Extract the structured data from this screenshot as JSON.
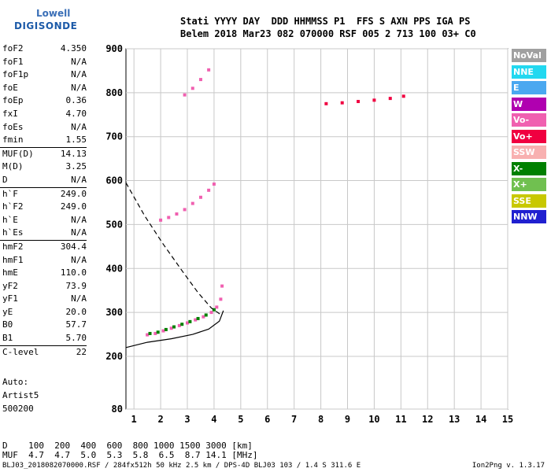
{
  "logo": {
    "line1": "Lowell",
    "line2": "DIGISONDE"
  },
  "header": {
    "line1": "Stati YYYY DAY  DDD HHMMSS P1  FFS S AXN PPS IGA PS",
    "line2": "Belem 2018 Mar23 082 070000 RSF 005 2 713 100 03+ C0"
  },
  "params": [
    {
      "k": "foF2",
      "v": "4.350"
    },
    {
      "k": "foF1",
      "v": "N/A"
    },
    {
      "k": "foF1p",
      "v": "N/A"
    },
    {
      "k": "foE",
      "v": "N/A"
    },
    {
      "k": "foEp",
      "v": "0.36"
    },
    {
      "k": "fxI",
      "v": "4.70"
    },
    {
      "k": "foEs",
      "v": "N/A"
    },
    {
      "k": "fmin",
      "v": "1.55"
    },
    {
      "k": "MUF(D)",
      "v": "14.13",
      "sep": true
    },
    {
      "k": "M(D)",
      "v": "3.25"
    },
    {
      "k": "D",
      "v": "N/A"
    },
    {
      "k": "h`F",
      "v": "249.0",
      "sep": true
    },
    {
      "k": "h`F2",
      "v": "249.0"
    },
    {
      "k": "h`E",
      "v": "N/A"
    },
    {
      "k": "h`Es",
      "v": "N/A"
    },
    {
      "k": "hmF2",
      "v": "304.4",
      "sep": true
    },
    {
      "k": "hmF1",
      "v": "N/A"
    },
    {
      "k": "hmE",
      "v": "110.0"
    },
    {
      "k": "yF2",
      "v": "73.9"
    },
    {
      "k": "yF1",
      "v": "N/A"
    },
    {
      "k": "yE",
      "v": "20.0"
    },
    {
      "k": "B0",
      "v": "57.7"
    },
    {
      "k": "B1",
      "v": "5.70"
    },
    {
      "k": "C-level",
      "v": "22",
      "sep": true
    }
  ],
  "auto": {
    "l1": "Auto:",
    "l2": "Artist5",
    "l3": "500200"
  },
  "footer": {
    "d_line": "D    100  200  400  600  800 1000 1500 3000 [km]",
    "muf_line": "MUF  4.7  4.7  5.0  5.3  5.8  6.5  8.7 14.1 [MHz]",
    "file_info": "BLJ03_2018082070000.RSF / 284fx512h 50 kHz 2.5 km / DPS-4D BLJ03 103 / 1.4 S 311.6 E",
    "version": "Ion2Png v. 1.3.17"
  },
  "legend": [
    {
      "label": "NoVal",
      "color": "#a0a0a0"
    },
    {
      "label": "NNE",
      "color": "#22d8f0"
    },
    {
      "label": "E",
      "color": "#4aa8f0"
    },
    {
      "label": "W",
      "color": "#b000b0"
    },
    {
      "label": "Vo-",
      "color": "#f060b0"
    },
    {
      "label": "Vo+",
      "color": "#f00040"
    },
    {
      "label": "SSW",
      "color": "#f8b0b0"
    },
    {
      "label": "X-",
      "color": "#008000"
    },
    {
      "label": "X+",
      "color": "#70c050"
    },
    {
      "label": "SSE",
      "color": "#c8c800"
    },
    {
      "label": "NNW",
      "color": "#2020d0"
    }
  ],
  "chart_data": {
    "type": "scatter",
    "xlabel": "",
    "ylabel": "",
    "xlim": [
      0.7,
      15
    ],
    "ylim": [
      80,
      900
    ],
    "xticks": [
      1,
      2,
      3,
      4,
      5,
      6,
      7,
      8,
      9,
      10,
      11,
      12,
      13,
      14,
      15
    ],
    "yticks": [
      80,
      200,
      300,
      400,
      500,
      600,
      700,
      800,
      900
    ],
    "grid": true,
    "traces": [
      {
        "name": "O-trace F2",
        "color": "#f060b0",
        "x": [
          1.5,
          1.8,
          2.1,
          2.4,
          2.7,
          3.0,
          3.3,
          3.6,
          3.9,
          4.1,
          4.25,
          4.3
        ],
        "y": [
          249,
          252,
          258,
          264,
          270,
          276,
          283,
          290,
          300,
          312,
          330,
          360
        ]
      },
      {
        "name": "X-trace F2",
        "color": "#008000",
        "x": [
          1.6,
          1.9,
          2.2,
          2.5,
          2.8,
          3.1,
          3.4,
          3.7,
          4.0
        ],
        "y": [
          252,
          255,
          261,
          267,
          273,
          279,
          286,
          294,
          306
        ]
      },
      {
        "name": "2nd hop",
        "color": "#f060b0",
        "x": [
          2.0,
          2.3,
          2.6,
          2.9,
          3.2,
          3.5,
          3.8,
          4.0
        ],
        "y": [
          510,
          516,
          524,
          534,
          548,
          562,
          578,
          592
        ]
      },
      {
        "name": "3rd hop",
        "color": "#f060b0",
        "x": [
          2.9,
          3.2,
          3.5,
          3.8
        ],
        "y": [
          795,
          810,
          830,
          852
        ]
      },
      {
        "name": "Spread near 9-11 MHz",
        "color": "#f00040",
        "x": [
          8.2,
          8.8,
          9.4,
          10.0,
          10.6,
          11.1
        ],
        "y": [
          775,
          777,
          780,
          783,
          787,
          792
        ]
      }
    ],
    "profile_solid": {
      "color": "#000000",
      "x": [
        0.7,
        1.5,
        2.4,
        3.2,
        3.8,
        4.2,
        4.35
      ],
      "y": [
        220,
        232,
        240,
        250,
        262,
        280,
        304
      ]
    },
    "profile_dashed": {
      "color": "#000000",
      "x": [
        0.7,
        1.4,
        2.1,
        2.8,
        3.4,
        3.9,
        4.25
      ],
      "y": [
        595,
        520,
        455,
        395,
        345,
        310,
        295
      ]
    }
  }
}
